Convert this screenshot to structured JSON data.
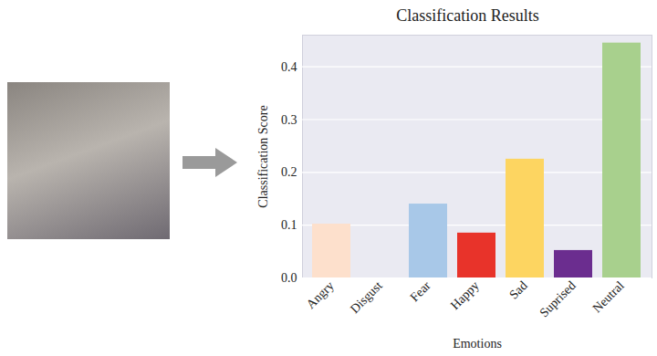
{
  "chart_data": {
    "type": "bar",
    "title": "Classification Results",
    "x_label": "Emotions",
    "y_label": "Classification Score",
    "categories": [
      "Angry",
      "Disgust",
      "Fear",
      "Happy",
      "Sad",
      "Suprised",
      "Neutral"
    ],
    "values": [
      0.102,
      0.0,
      0.14,
      0.085,
      0.225,
      0.052,
      0.445
    ],
    "colors": [
      "#fde0cc",
      "#c9c9d6",
      "#a8c8e8",
      "#e8332a",
      "#fdd561",
      "#6b2d8f",
      "#a8d08d"
    ],
    "ylim": [
      0,
      0.46
    ],
    "yticks": [
      {
        "value": 0,
        "label": "0.0"
      },
      {
        "value": 0.1,
        "label": "0.1"
      },
      {
        "value": 0.2,
        "label": "0.2"
      },
      {
        "value": 0.3,
        "label": "0.3"
      },
      {
        "value": 0.4,
        "label": "0.4"
      }
    ],
    "grid": true
  }
}
